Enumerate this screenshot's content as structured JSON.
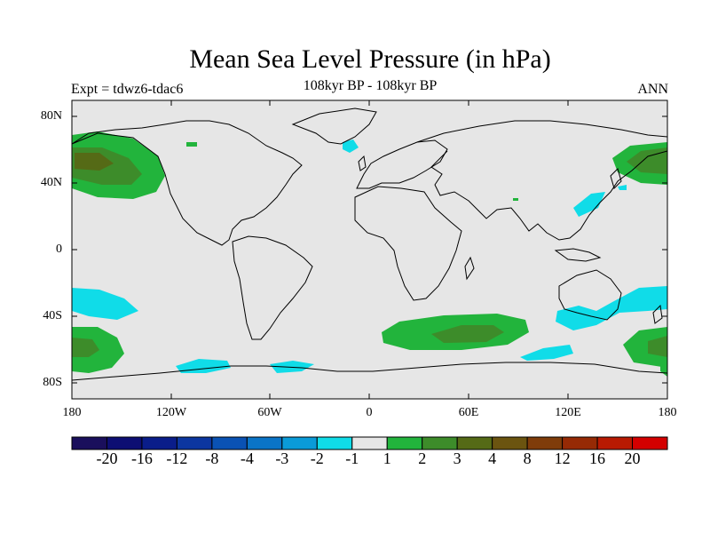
{
  "title": "Mean Sea Level Pressure (in hPa)",
  "subtitle": "108kyr BP - 108kyr BP",
  "experiment_label": "Expt = tdwz6-tdac6",
  "season_label": "ANN",
  "lat_labels": [
    "80N",
    "40N",
    "0",
    "40S",
    "80S"
  ],
  "lon_labels": [
    "180",
    "120W",
    "60W",
    "0",
    "60E",
    "120E",
    "180"
  ],
  "colorbar": {
    "colors": [
      "#1a0f5c",
      "#0d0e73",
      "#0a1d8a",
      "#0c36a0",
      "#0a52b4",
      "#0a74c7",
      "#0a9bd8",
      "#10dce8",
      "#e6e6e6",
      "#22b43c",
      "#3d8c2a",
      "#556a16",
      "#6b5410",
      "#7f3c0a",
      "#962a05",
      "#b81a02",
      "#d40000"
    ],
    "labels": [
      "-20",
      "-16",
      "-12",
      "-8",
      "-4",
      "-3",
      "-2",
      "-1",
      "1",
      "2",
      "3",
      "4",
      "8",
      "12",
      "16",
      "20"
    ]
  },
  "map": {
    "ocean_color": "#e6e6e6",
    "land_outline_color": "#000000"
  }
}
